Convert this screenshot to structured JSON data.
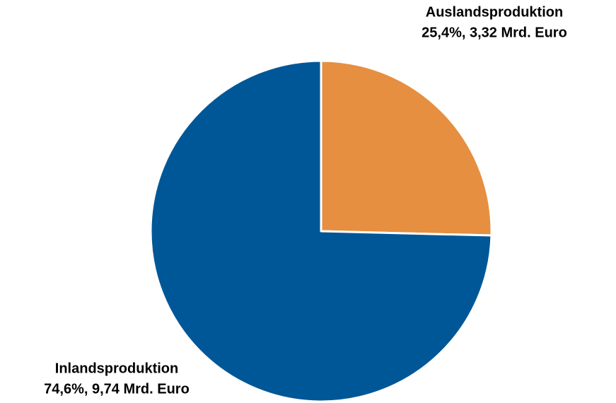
{
  "chart_data": {
    "type": "pie",
    "categories": [
      "Auslandsproduktion",
      "Inlandsproduktion"
    ],
    "values": [
      25.4,
      74.6
    ],
    "value_labels": [
      "25,4%, 3,32 Mrd. Euro",
      "74,6%, 9,74 Mrd. Euro"
    ],
    "colors": [
      "#e68f40",
      "#005797"
    ]
  }
}
